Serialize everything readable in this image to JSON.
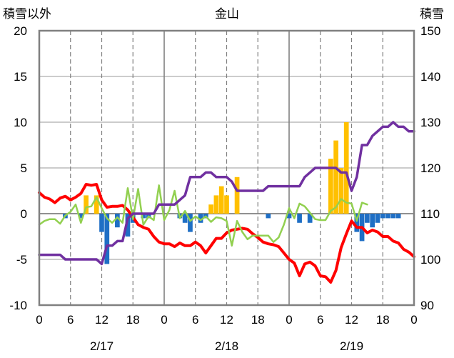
{
  "chart_data": {
    "type": "bar+line",
    "title": "金山",
    "y_left_label": "積雪以外",
    "y_right_label": "積雪",
    "y_left_ticks": [
      "20",
      "15",
      "10",
      "5",
      "0",
      "-5",
      "-10"
    ],
    "y_right_ticks": [
      "150",
      "140",
      "130",
      "120",
      "110",
      "100",
      "90"
    ],
    "y_left_range": [
      -10,
      20
    ],
    "y_right_range": [
      90,
      150
    ],
    "x_range_hours": [
      0,
      72
    ],
    "x_tick_labels": [
      "0",
      "6",
      "12",
      "18",
      "0",
      "6",
      "12",
      "18",
      "0",
      "6",
      "12",
      "18",
      "0"
    ],
    "date_labels": [
      "2/17",
      "2/18",
      "2/19"
    ],
    "colors": {
      "snowfall": "#FFC000",
      "precip_neg": "#1F6FC5",
      "temperature": "#FF0000",
      "sunshine": "#92D050",
      "snow_depth": "#7030A0"
    },
    "series": [
      {
        "kind": "bar",
        "color": "#FFC000",
        "points": [
          [
            9,
            2
          ],
          [
            11,
            2
          ],
          [
            33,
            1
          ],
          [
            34,
            2
          ],
          [
            35,
            3
          ],
          [
            36,
            2
          ],
          [
            38,
            4
          ],
          [
            56,
            6
          ],
          [
            57,
            8
          ],
          [
            58,
            5
          ],
          [
            59,
            10
          ]
        ]
      },
      {
        "kind": "bar",
        "color": "#1F6FC5",
        "points": [
          [
            5,
            -0.5
          ],
          [
            8,
            -0.5
          ],
          [
            12,
            -2
          ],
          [
            13,
            -5.5
          ],
          [
            15,
            -1.5
          ],
          [
            17,
            -2.5
          ],
          [
            18,
            -1
          ],
          [
            20,
            -0.5
          ],
          [
            21,
            -0.5
          ],
          [
            27,
            -0.5
          ],
          [
            28,
            -1
          ],
          [
            29,
            -2
          ],
          [
            31,
            -1
          ],
          [
            32,
            -0.5
          ],
          [
            44,
            -0.5
          ],
          [
            48,
            -0.5
          ],
          [
            50,
            -1
          ],
          [
            52,
            -1
          ],
          [
            61,
            -2
          ],
          [
            62,
            -3
          ],
          [
            63,
            -1
          ],
          [
            64,
            -1.5
          ],
          [
            65,
            -1
          ],
          [
            66,
            -0.5
          ],
          [
            67,
            -0.5
          ],
          [
            68,
            -0.5
          ],
          [
            69,
            -0.5
          ]
        ]
      },
      {
        "kind": "line",
        "color": "#FF0000",
        "points": [
          [
            0,
            2.3
          ],
          [
            1,
            1.8
          ],
          [
            2,
            1.6
          ],
          [
            3,
            1.2
          ],
          [
            4,
            1.7
          ],
          [
            5,
            1.9
          ],
          [
            6,
            1.5
          ],
          [
            7,
            1.8
          ],
          [
            8,
            2.2
          ],
          [
            9,
            3.2
          ],
          [
            10,
            3.1
          ],
          [
            11,
            3.2
          ],
          [
            12,
            1.5
          ],
          [
            13,
            0.7
          ],
          [
            14,
            0.8
          ],
          [
            15,
            0.8
          ],
          [
            16,
            0.9
          ],
          [
            17,
            0.4
          ],
          [
            18,
            -0.4
          ],
          [
            19,
            -1.2
          ],
          [
            20,
            -1.5
          ],
          [
            21,
            -1.7
          ],
          [
            22,
            -2.5
          ],
          [
            23,
            -3.1
          ],
          [
            24,
            -3.3
          ],
          [
            25,
            -3.3
          ],
          [
            26,
            -3.6
          ],
          [
            27,
            -3.2
          ],
          [
            28,
            -3.5
          ],
          [
            29,
            -3.5
          ],
          [
            30,
            -3.1
          ],
          [
            31,
            -3.5
          ],
          [
            32,
            -4.3
          ],
          [
            33,
            -3.5
          ],
          [
            34,
            -2.7
          ],
          [
            35,
            -2.7
          ],
          [
            36,
            -2.1
          ],
          [
            37,
            -1.8
          ],
          [
            38,
            -1.7
          ],
          [
            39,
            -1.6
          ],
          [
            40,
            -1.7
          ],
          [
            41,
            -2.2
          ],
          [
            42,
            -2.6
          ],
          [
            43,
            -3.1
          ],
          [
            44,
            -3.3
          ],
          [
            45,
            -3.4
          ],
          [
            46,
            -3.6
          ],
          [
            47,
            -4.3
          ],
          [
            48,
            -5.0
          ],
          [
            49,
            -5.4
          ],
          [
            50,
            -6.8
          ],
          [
            51,
            -5.5
          ],
          [
            52,
            -5.3
          ],
          [
            53,
            -5.7
          ],
          [
            54,
            -6.8
          ],
          [
            55,
            -6.9
          ],
          [
            56,
            -7.5
          ],
          [
            57,
            -6.2
          ],
          [
            58,
            -3.7
          ],
          [
            59,
            -2.2
          ],
          [
            60,
            -0.8
          ],
          [
            61,
            -1.5
          ],
          [
            62,
            -1.5
          ],
          [
            63,
            -2.1
          ],
          [
            64,
            -1.8
          ],
          [
            65,
            -2.0
          ],
          [
            66,
            -2.5
          ],
          [
            67,
            -2.5
          ],
          [
            68,
            -3.0
          ],
          [
            69,
            -3.2
          ],
          [
            70,
            -3.9
          ],
          [
            71,
            -4.2
          ],
          [
            72,
            -4.7
          ]
        ]
      },
      {
        "kind": "line",
        "color": "#92D050",
        "points": [
          [
            0,
            -1.2
          ],
          [
            1,
            -0.8
          ],
          [
            2,
            -0.6
          ],
          [
            3,
            -0.6
          ],
          [
            4,
            -1.1
          ],
          [
            5,
            -0.2
          ],
          [
            6,
            0.2
          ],
          [
            7,
            1.0
          ],
          [
            8,
            -1.0
          ],
          [
            9,
            0.7
          ],
          [
            10,
            0.8
          ],
          [
            11,
            1.8
          ],
          [
            12,
            0.6
          ],
          [
            13,
            -0.5
          ],
          [
            14,
            -1.0
          ],
          [
            15,
            -0.4
          ],
          [
            16,
            -1.0
          ],
          [
            17,
            2.8
          ],
          [
            18,
            -0.6
          ],
          [
            19,
            2.7
          ],
          [
            20,
            -1.2
          ],
          [
            21,
            -0.3
          ],
          [
            22,
            -0.7
          ],
          [
            23,
            3.1
          ],
          [
            24,
            -0.7
          ],
          [
            25,
            0.4
          ],
          [
            26,
            2.5
          ],
          [
            27,
            -0.5
          ],
          [
            28,
            0.3
          ],
          [
            29,
            -0.8
          ],
          [
            30,
            -0.3
          ],
          [
            31,
            -0.7
          ],
          [
            32,
            -0.3
          ],
          [
            33,
            -0.9
          ],
          [
            34,
            -0.4
          ],
          [
            35,
            -0.5
          ],
          [
            36,
            -0.8
          ],
          [
            37,
            -3.5
          ],
          [
            38,
            -0.8
          ],
          [
            39,
            -2.0
          ],
          [
            40,
            -2.8
          ],
          [
            41,
            -2.4
          ],
          [
            42,
            -2.4
          ],
          [
            43,
            -2.4
          ],
          [
            44,
            -2.4
          ],
          [
            45,
            -3.1
          ],
          [
            46,
            -2.6
          ],
          [
            47,
            -1.2
          ],
          [
            48,
            0.6
          ],
          [
            49,
            -0.5
          ],
          [
            50,
            1.1
          ],
          [
            51,
            0.8
          ],
          [
            52,
            0.1
          ],
          [
            53,
            -0.6
          ],
          [
            54,
            -0.7
          ],
          [
            55,
            -0.7
          ],
          [
            56,
            0.3
          ],
          [
            57,
            0.7
          ],
          [
            58,
            1.6
          ],
          [
            59,
            1.2
          ],
          [
            60,
            1.1
          ],
          [
            61,
            -0.8
          ],
          [
            62,
            1.2
          ],
          [
            63,
            1.0
          ]
        ]
      },
      {
        "kind": "line",
        "axis": "right",
        "color": "#7030A0",
        "points": [
          [
            0,
            101
          ],
          [
            1,
            101
          ],
          [
            2,
            101
          ],
          [
            3,
            101
          ],
          [
            4,
            101
          ],
          [
            5,
            100
          ],
          [
            6,
            100
          ],
          [
            7,
            100
          ],
          [
            8,
            100
          ],
          [
            9,
            100
          ],
          [
            10,
            100
          ],
          [
            11,
            100
          ],
          [
            12,
            99
          ],
          [
            13,
            103
          ],
          [
            14,
            103
          ],
          [
            15,
            104
          ],
          [
            16,
            104
          ],
          [
            17,
            109
          ],
          [
            18,
            110
          ],
          [
            19,
            110
          ],
          [
            20,
            110
          ],
          [
            21,
            110
          ],
          [
            22,
            110
          ],
          [
            23,
            112
          ],
          [
            24,
            112
          ],
          [
            25,
            112
          ],
          [
            26,
            112
          ],
          [
            27,
            113
          ],
          [
            28,
            114
          ],
          [
            29,
            118
          ],
          [
            30,
            118
          ],
          [
            31,
            118
          ],
          [
            32,
            119
          ],
          [
            33,
            119
          ],
          [
            34,
            118
          ],
          [
            35,
            118
          ],
          [
            36,
            118
          ],
          [
            37,
            117
          ],
          [
            38,
            115
          ],
          [
            39,
            115
          ],
          [
            40,
            115
          ],
          [
            41,
            115
          ],
          [
            42,
            115
          ],
          [
            43,
            115
          ],
          [
            44,
            116
          ],
          [
            45,
            116
          ],
          [
            46,
            116
          ],
          [
            47,
            116
          ],
          [
            48,
            116
          ],
          [
            49,
            116
          ],
          [
            50,
            116
          ],
          [
            51,
            118
          ],
          [
            52,
            119
          ],
          [
            53,
            120
          ],
          [
            54,
            120
          ],
          [
            55,
            120
          ],
          [
            56,
            120
          ],
          [
            57,
            120
          ],
          [
            58,
            119
          ],
          [
            59,
            119
          ],
          [
            60,
            115
          ],
          [
            61,
            118
          ],
          [
            62,
            125
          ],
          [
            63,
            125
          ],
          [
            64,
            127
          ],
          [
            65,
            128
          ],
          [
            66,
            129
          ],
          [
            67,
            129
          ],
          [
            68,
            130
          ],
          [
            69,
            129
          ],
          [
            70,
            129
          ],
          [
            71,
            128
          ],
          [
            72,
            128
          ]
        ]
      }
    ]
  }
}
